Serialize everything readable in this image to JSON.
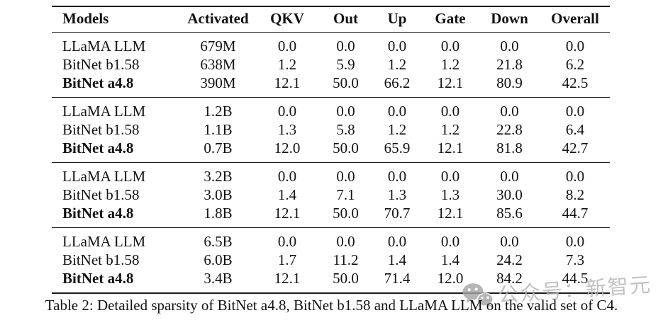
{
  "table": {
    "headers": [
      "Models",
      "Activated",
      "QKV",
      "Out",
      "Up",
      "Gate",
      "Down",
      "Overall"
    ],
    "groups": [
      {
        "rows": [
          {
            "model": "LLaMA LLM",
            "bold": false,
            "values": [
              "679M",
              "0.0",
              "0.0",
              "0.0",
              "0.0",
              "0.0",
              "0.0"
            ]
          },
          {
            "model": "BitNet b1.58",
            "bold": false,
            "values": [
              "638M",
              "1.2",
              "5.9",
              "1.2",
              "1.2",
              "21.8",
              "6.2"
            ]
          },
          {
            "model": "BitNet a4.8",
            "bold": true,
            "values": [
              "390M",
              "12.1",
              "50.0",
              "66.2",
              "12.1",
              "80.9",
              "42.5"
            ]
          }
        ]
      },
      {
        "rows": [
          {
            "model": "LLaMA LLM",
            "bold": false,
            "values": [
              "1.2B",
              "0.0",
              "0.0",
              "0.0",
              "0.0",
              "0.0",
              "0.0"
            ]
          },
          {
            "model": "BitNet b1.58",
            "bold": false,
            "values": [
              "1.1B",
              "1.3",
              "5.8",
              "1.2",
              "1.2",
              "22.8",
              "6.4"
            ]
          },
          {
            "model": "BitNet a4.8",
            "bold": true,
            "values": [
              "0.7B",
              "12.0",
              "50.0",
              "65.9",
              "12.1",
              "81.8",
              "42.7"
            ]
          }
        ]
      },
      {
        "rows": [
          {
            "model": "LLaMA LLM",
            "bold": false,
            "values": [
              "3.2B",
              "0.0",
              "0.0",
              "0.0",
              "0.0",
              "0.0",
              "0.0"
            ]
          },
          {
            "model": "BitNet b1.58",
            "bold": false,
            "values": [
              "3.0B",
              "1.4",
              "7.1",
              "1.3",
              "1.3",
              "30.0",
              "8.2"
            ]
          },
          {
            "model": "BitNet a4.8",
            "bold": true,
            "values": [
              "1.8B",
              "12.1",
              "50.0",
              "70.7",
              "12.1",
              "85.6",
              "44.7"
            ]
          }
        ]
      },
      {
        "rows": [
          {
            "model": "LLaMA LLM",
            "bold": false,
            "values": [
              "6.5B",
              "0.0",
              "0.0",
              "0.0",
              "0.0",
              "0.0",
              "0.0"
            ]
          },
          {
            "model": "BitNet b1.58",
            "bold": false,
            "values": [
              "6.0B",
              "1.7",
              "11.2",
              "1.4",
              "1.4",
              "24.2",
              "7.3"
            ]
          },
          {
            "model": "BitNet a4.8",
            "bold": true,
            "values": [
              "3.4B",
              "12.1",
              "50.0",
              "71.4",
              "12.0",
              "84.2",
              "44.5"
            ]
          }
        ]
      }
    ]
  },
  "caption": "Table 2: Detailed sparsity of BitNet a4.8, BitNet b1.58 and LLaMA LLM on the valid set of C4.",
  "watermark": {
    "icon": "wechat-icon",
    "text": "公众号：新智元"
  },
  "colors": {
    "text": "#121212",
    "rule": "#1b1b1b",
    "watermark_gray": "#b3b3b3",
    "background": "#ffffff"
  }
}
